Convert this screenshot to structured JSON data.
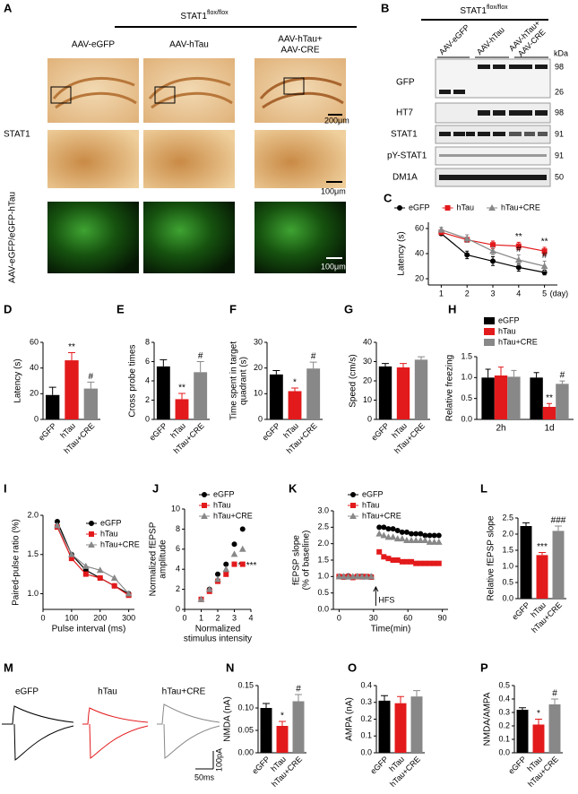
{
  "panel_a": {
    "label": "A",
    "genotype": "STAT1",
    "genotype_sup": "flox/flox",
    "columns": [
      [
        "AAV-eGFP"
      ],
      [
        "AAV-hTau"
      ],
      [
        "AAV-hTau+",
        "AAV-CRE"
      ]
    ],
    "rows": [
      "STAT1",
      "AAV-eGFP/eGFP-hTau"
    ],
    "scale_bars": [
      "200μm",
      "100μm",
      "100μm"
    ]
  },
  "panel_b": {
    "label": "B",
    "genotype": "STAT1",
    "genotype_sup": "flox/flox",
    "lanes": [
      [
        "AAV-eGFP"
      ],
      [
        "AAV-hTau"
      ],
      [
        "AAV-hTau+",
        "AAV-CRE"
      ]
    ],
    "unit": "kDa",
    "rows": [
      {
        "name": "GFP",
        "markers": [
          "98",
          "26"
        ]
      },
      {
        "name": "HT7",
        "markers": [
          "98"
        ]
      },
      {
        "name": "STAT1",
        "markers": [
          "91"
        ]
      },
      {
        "name": "pY-STAT1",
        "markers": [
          "91"
        ]
      },
      {
        "name": "DM1A",
        "markers": [
          "50"
        ]
      }
    ]
  },
  "panel_m": {
    "label": "M",
    "traces": [
      "eGFP",
      "hTau",
      "hTau+CRE"
    ],
    "scale_time": "50ms",
    "scale_current": "100pA"
  },
  "chart_data": [
    {
      "panel": "C",
      "type": "line",
      "ylabel": "Latency (s)",
      "x": [
        1,
        2,
        3,
        4,
        5
      ],
      "xlim": [
        0.5,
        5.5
      ],
      "xticks": [
        1,
        2,
        3,
        4,
        5
      ],
      "xunit": "(day)",
      "ylim": [
        15,
        65
      ],
      "yticks": [
        20,
        40,
        60
      ],
      "legend": "top",
      "series": [
        {
          "name": "eGFP",
          "color": "#000000",
          "marker": "circle",
          "values": [
            56,
            39,
            34,
            29,
            25
          ],
          "errors": [
            1.5,
            3,
            3.5,
            3,
            2
          ],
          "annotations": [
            null,
            null,
            null,
            null,
            null
          ]
        },
        {
          "name": "hTau",
          "color": "#e31a1c",
          "marker": "square",
          "values": [
            57,
            51,
            47,
            46,
            42
          ],
          "errors": [
            1.5,
            2,
            3,
            3,
            3
          ],
          "annotations": [
            null,
            null,
            null,
            "**",
            "**"
          ]
        },
        {
          "name": "hTau+CRE",
          "color": "#888888",
          "marker": "triangle",
          "values": [
            59,
            52,
            42,
            35,
            30
          ],
          "errors": [
            2,
            3,
            3,
            4,
            4
          ],
          "annotations": [
            null,
            null,
            null,
            "#",
            "#"
          ]
        }
      ]
    },
    {
      "panel": "D",
      "type": "bar",
      "ylabel": "Latency (s)",
      "categories": [
        "eGFP",
        "hTau",
        "hTau+CRE"
      ],
      "values": [
        19,
        46,
        24
      ],
      "errors": [
        6,
        6,
        5
      ],
      "colors": [
        "#000000",
        "#e31a1c",
        "#888888"
      ],
      "annotations": [
        null,
        "**",
        "#"
      ],
      "ylim": [
        0,
        60
      ],
      "yticks": [
        0,
        20,
        40,
        60
      ]
    },
    {
      "panel": "E",
      "type": "bar",
      "ylabel": "Cross probe times",
      "categories": [
        "eGFP",
        "hTau",
        "hTau+CRE"
      ],
      "values": [
        5.5,
        2.1,
        4.9
      ],
      "errors": [
        0.7,
        0.6,
        1.1
      ],
      "colors": [
        "#000000",
        "#e31a1c",
        "#888888"
      ],
      "annotations": [
        null,
        "**",
        "#"
      ],
      "ylim": [
        0,
        8
      ],
      "yticks": [
        0,
        2,
        4,
        6,
        8
      ]
    },
    {
      "panel": "F",
      "type": "bar",
      "ylabel": [
        "Time spent in target",
        "quadrant (s)"
      ],
      "categories": [
        "eGFP",
        "hTau",
        "hTau+CRE"
      ],
      "values": [
        17.5,
        11,
        19.8
      ],
      "errors": [
        1.5,
        1.2,
        2.5
      ],
      "colors": [
        "#000000",
        "#e31a1c",
        "#888888"
      ],
      "annotations": [
        null,
        "*",
        "#"
      ],
      "ylim": [
        0,
        30
      ],
      "yticks": [
        0,
        10,
        20,
        30
      ]
    },
    {
      "panel": "G",
      "type": "bar",
      "ylabel": "Speed (cm/s)",
      "categories": [
        "eGFP",
        "hTau",
        "hTau+CRE"
      ],
      "values": [
        27.5,
        27,
        31
      ],
      "errors": [
        1.5,
        2,
        1.5
      ],
      "colors": [
        "#000000",
        "#e31a1c",
        "#888888"
      ],
      "annotations": [
        null,
        null,
        null
      ],
      "ylim": [
        0,
        40
      ],
      "yticks": [
        0,
        10,
        20,
        30,
        40
      ]
    },
    {
      "panel": "H",
      "type": "grouped_bar",
      "ylabel": "Relative freezing",
      "categories": [
        "2h",
        "1d"
      ],
      "ylim": [
        0,
        1.5
      ],
      "yticks": [
        {
          "value": 0,
          "label": "0.0"
        },
        {
          "value": 0.5,
          "label": "0.5"
        },
        {
          "value": 1,
          "label": "1.0"
        },
        {
          "value": 1.5,
          "label": "1.5"
        }
      ],
      "legend": "top-right",
      "series": [
        {
          "name": "eGFP",
          "color": "#000000",
          "values": [
            1.0,
            1.0
          ],
          "errors": [
            0.2,
            0.12
          ],
          "annotations": [
            null,
            null
          ]
        },
        {
          "name": "hTau",
          "color": "#e31a1c",
          "values": [
            1.05,
            0.3
          ],
          "errors": [
            0.2,
            0.08
          ],
          "annotations": [
            null,
            "**"
          ]
        },
        {
          "name": "hTau+CRE",
          "color": "#888888",
          "values": [
            1.02,
            0.85
          ],
          "errors": [
            0.15,
            0.07
          ],
          "annotations": [
            null,
            "#"
          ]
        }
      ]
    },
    {
      "panel": "I",
      "type": "line",
      "ylabel": "Paired-pulse ratio (%)",
      "xlabel": "Pulse interval (ms)",
      "x": [
        50,
        100,
        150,
        200,
        250,
        300
      ],
      "xlim": [
        0,
        320
      ],
      "xticks": [
        0,
        100,
        200,
        300
      ],
      "ylim": [
        0.8,
        2.0
      ],
      "yticks": [
        {
          "value": 1,
          "label": "1.0"
        },
        {
          "value": 1.5,
          "label": "1.5"
        },
        {
          "value": 2,
          "label": "2.0"
        }
      ],
      "legend": "top-right",
      "series": [
        {
          "name": "eGFP",
          "color": "#000000",
          "marker": "circle",
          "values": [
            1.92,
            1.5,
            1.3,
            1.2,
            1.1,
            1.0
          ]
        },
        {
          "name": "hTau",
          "color": "#e31a1c",
          "marker": "square",
          "values": [
            1.85,
            1.45,
            1.25,
            1.2,
            1.1,
            0.98
          ]
        },
        {
          "name": "hTau+CRE",
          "color": "#888888",
          "marker": "triangle",
          "values": [
            1.87,
            1.5,
            1.35,
            1.3,
            1.2,
            1.0
          ]
        }
      ]
    },
    {
      "panel": "J",
      "type": "scatter",
      "ylabel": [
        "Normalized fEPSP",
        "amplitude"
      ],
      "xlabel": [
        "Normalized",
        "stimulus intensity"
      ],
      "x": [
        1,
        1.5,
        2,
        2.5,
        3,
        3.5
      ],
      "xlim": [
        0,
        4
      ],
      "xticks": [
        0,
        1,
        2,
        3,
        4
      ],
      "ylim": [
        0,
        10
      ],
      "yticks": [
        0,
        2,
        4,
        6,
        8,
        10
      ],
      "legend": "top-right",
      "series": [
        {
          "name": "eGFP",
          "color": "#000000",
          "marker": "circle",
          "values": [
            1,
            2,
            3.5,
            4.5,
            6.5,
            8
          ]
        },
        {
          "name": "hTau",
          "color": "#e31a1c",
          "marker": "square",
          "values": [
            1,
            1.8,
            2.8,
            3.5,
            4.5,
            4.5
          ],
          "annotations": [
            null,
            null,
            null,
            null,
            "*",
            "***"
          ]
        },
        {
          "name": "hTau+CRE",
          "color": "#888888",
          "marker": "triangle",
          "values": [
            1,
            2,
            3,
            4,
            5.5,
            6
          ]
        }
      ]
    },
    {
      "panel": "K",
      "type": "scatter",
      "ylabel": [
        "fEPSP slope",
        "(% of baseline)"
      ],
      "xlabel": "Time(min)",
      "x": [
        0,
        4,
        8,
        12,
        16,
        20,
        24,
        28,
        35,
        39,
        43,
        47,
        51,
        55,
        59,
        63,
        67,
        71,
        75,
        79,
        83,
        87
      ],
      "xlim": [
        -5,
        95
      ],
      "xticks": [
        0,
        30,
        60,
        90
      ],
      "ylim": [
        0,
        3
      ],
      "yticks": [
        {
          "value": 0,
          "label": "0.0"
        },
        {
          "value": 0.5,
          "label": "0.5"
        },
        {
          "value": 1,
          "label": "1.0"
        },
        {
          "value": 1.5,
          "label": "1.5"
        },
        {
          "value": 2,
          "label": "2.0"
        },
        {
          "value": 2.5,
          "label": "2.5"
        },
        {
          "value": 3,
          "label": "3.0"
        }
      ],
      "legend": "top-right",
      "events": [
        {
          "label": "HFS",
          "x": 32
        }
      ],
      "series": [
        {
          "name": "eGFP",
          "color": "#000000",
          "marker": "circle",
          "values": [
            1,
            1,
            1.02,
            0.98,
            1,
            1.01,
            1,
            1,
            2.5,
            2.5,
            2.45,
            2.45,
            2.4,
            2.35,
            2.35,
            2.3,
            2.3,
            2.3,
            2.25,
            2.25,
            2.25,
            2.25
          ]
        },
        {
          "name": "hTau",
          "color": "#e31a1c",
          "marker": "square",
          "values": [
            1,
            0.98,
            1,
            0.97,
            1,
            0.99,
            1,
            0.98,
            1.75,
            1.6,
            1.55,
            1.5,
            1.5,
            1.45,
            1.45,
            1.45,
            1.4,
            1.4,
            1.4,
            1.4,
            1.4,
            1.4
          ]
        },
        {
          "name": "hTau+CRE",
          "color": "#888888",
          "marker": "triangle",
          "values": [
            1,
            1,
            0.99,
            1,
            1.01,
            1,
            0.99,
            1,
            2.3,
            2.25,
            2.2,
            2.2,
            2.15,
            2.15,
            2.1,
            2.1,
            2.1,
            2.1,
            2.1,
            2.05,
            2.05,
            2.05
          ]
        }
      ]
    },
    {
      "panel": "L",
      "type": "bar",
      "ylabel": "Relative fEPSP slope",
      "categories": [
        "eGFP",
        "hTau",
        "hTau+CRE"
      ],
      "values": [
        2.25,
        1.35,
        2.1
      ],
      "errors": [
        0.1,
        0.08,
        0.15
      ],
      "colors": [
        "#000000",
        "#e31a1c",
        "#888888"
      ],
      "annotations": [
        null,
        "***",
        "###"
      ],
      "ylim": [
        0,
        2.5
      ],
      "yticks": [
        {
          "value": 0,
          "label": "0.0"
        },
        {
          "value": 0.5,
          "label": "0.5"
        },
        {
          "value": 1,
          "label": "1.0"
        },
        {
          "value": 1.5,
          "label": "1.5"
        },
        {
          "value": 2,
          "label": "2.0"
        },
        {
          "value": 2.5,
          "label": "2.5"
        }
      ]
    },
    {
      "panel": "N",
      "type": "bar",
      "ylabel": "NMDA (nA)",
      "categories": [
        "eGFP",
        "hTau",
        "hTau+CRE"
      ],
      "values": [
        0.1,
        0.06,
        0.115
      ],
      "errors": [
        0.01,
        0.01,
        0.015
      ],
      "colors": [
        "#000000",
        "#e31a1c",
        "#888888"
      ],
      "annotations": [
        null,
        "*",
        "#"
      ],
      "ylim": [
        0,
        0.15
      ],
      "yticks": [
        {
          "value": 0,
          "label": "0.00"
        },
        {
          "value": 0.05,
          "label": "0.05"
        },
        {
          "value": 0.1,
          "label": "0.10"
        },
        {
          "value": 0.15,
          "label": "0.15"
        }
      ]
    },
    {
      "panel": "O",
      "type": "bar",
      "ylabel": "AMPA (nA)",
      "categories": [
        "eGFP",
        "hTau",
        "hTau+CRE"
      ],
      "values": [
        0.31,
        0.295,
        0.335
      ],
      "errors": [
        0.03,
        0.04,
        0.035
      ],
      "colors": [
        "#000000",
        "#e31a1c",
        "#888888"
      ],
      "annotations": [
        null,
        null,
        null
      ],
      "ylim": [
        0,
        0.4
      ],
      "yticks": [
        {
          "value": 0,
          "label": "0.0"
        },
        {
          "value": 0.1,
          "label": "0.1"
        },
        {
          "value": 0.2,
          "label": "0.2"
        },
        {
          "value": 0.3,
          "label": "0.3"
        },
        {
          "value": 0.4,
          "label": "0.4"
        }
      ]
    },
    {
      "panel": "P",
      "type": "bar",
      "ylabel": "NMDA/AMPA",
      "categories": [
        "eGFP",
        "hTau",
        "hTau+CRE"
      ],
      "values": [
        0.32,
        0.21,
        0.36
      ],
      "errors": [
        0.015,
        0.04,
        0.04
      ],
      "colors": [
        "#000000",
        "#e31a1c",
        "#888888"
      ],
      "annotations": [
        null,
        "*",
        "#"
      ],
      "ylim": [
        0,
        0.5
      ],
      "yticks": [
        {
          "value": 0,
          "label": "0.0"
        },
        {
          "value": 0.1,
          "label": "0.1"
        },
        {
          "value": 0.2,
          "label": "0.2"
        },
        {
          "value": 0.3,
          "label": "0.3"
        },
        {
          "value": 0.4,
          "label": "0.4"
        },
        {
          "value": 0.5,
          "label": "0.5"
        }
      ]
    }
  ]
}
